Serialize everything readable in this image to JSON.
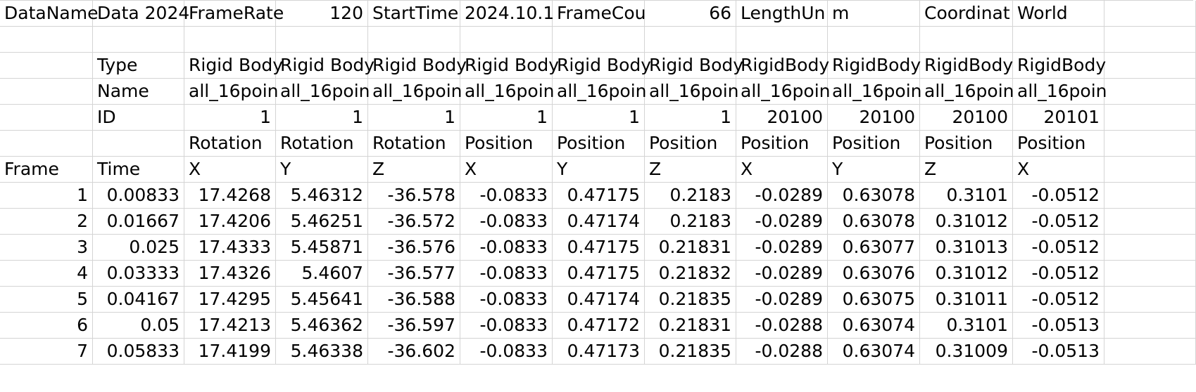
{
  "spreadsheet": {
    "rows": [
      {
        "cells": [
          {
            "v": "DataName",
            "t": "txt"
          },
          {
            "v": "Data 2024",
            "t": "txt"
          },
          {
            "v": "FrameRate",
            "t": "txt"
          },
          {
            "v": "120",
            "t": "num"
          },
          {
            "v": "StartTime",
            "t": "txt"
          },
          {
            "v": "2024.10.1",
            "t": "txt"
          },
          {
            "v": "FrameCou",
            "t": "txt"
          },
          {
            "v": "66",
            "t": "num"
          },
          {
            "v": "LengthUn",
            "t": "txt"
          },
          {
            "v": "m",
            "t": "txt"
          },
          {
            "v": "Coordinat",
            "t": "txt"
          },
          {
            "v": "World",
            "t": "txt"
          },
          {
            "v": "",
            "t": "txt"
          }
        ]
      },
      {
        "cells": [
          {
            "v": "",
            "t": "txt"
          },
          {
            "v": "",
            "t": "txt"
          },
          {
            "v": "",
            "t": "txt"
          },
          {
            "v": "",
            "t": "txt"
          },
          {
            "v": "",
            "t": "txt"
          },
          {
            "v": "",
            "t": "txt"
          },
          {
            "v": "",
            "t": "txt"
          },
          {
            "v": "",
            "t": "txt"
          },
          {
            "v": "",
            "t": "txt"
          },
          {
            "v": "",
            "t": "txt"
          },
          {
            "v": "",
            "t": "txt"
          },
          {
            "v": "",
            "t": "txt"
          },
          {
            "v": "",
            "t": "txt"
          }
        ]
      },
      {
        "cells": [
          {
            "v": "",
            "t": "txt"
          },
          {
            "v": "Type",
            "t": "txt"
          },
          {
            "v": "Rigid Body",
            "t": "txt"
          },
          {
            "v": "Rigid Body",
            "t": "txt"
          },
          {
            "v": "Rigid Body",
            "t": "txt"
          },
          {
            "v": "Rigid Body",
            "t": "txt"
          },
          {
            "v": "Rigid Body",
            "t": "txt"
          },
          {
            "v": "Rigid Body",
            "t": "txt"
          },
          {
            "v": "RigidBody",
            "t": "txt"
          },
          {
            "v": "RigidBody",
            "t": "txt"
          },
          {
            "v": "RigidBody",
            "t": "txt"
          },
          {
            "v": "RigidBody",
            "t": "txt"
          },
          {
            "v": "",
            "t": "txt"
          }
        ]
      },
      {
        "cells": [
          {
            "v": "",
            "t": "txt"
          },
          {
            "v": "Name",
            "t": "txt"
          },
          {
            "v": "all_16poin",
            "t": "txt"
          },
          {
            "v": "all_16poin",
            "t": "txt"
          },
          {
            "v": "all_16poin",
            "t": "txt"
          },
          {
            "v": "all_16poin",
            "t": "txt"
          },
          {
            "v": "all_16poin",
            "t": "txt"
          },
          {
            "v": "all_16poin",
            "t": "txt"
          },
          {
            "v": "all_16poin",
            "t": "txt"
          },
          {
            "v": "all_16poin",
            "t": "txt"
          },
          {
            "v": "all_16poin",
            "t": "txt"
          },
          {
            "v": "all_16poin",
            "t": "txt"
          },
          {
            "v": "",
            "t": "txt"
          }
        ]
      },
      {
        "cells": [
          {
            "v": "",
            "t": "txt"
          },
          {
            "v": "ID",
            "t": "txt"
          },
          {
            "v": "1",
            "t": "num"
          },
          {
            "v": "1",
            "t": "num"
          },
          {
            "v": "1",
            "t": "num"
          },
          {
            "v": "1",
            "t": "num"
          },
          {
            "v": "1",
            "t": "num"
          },
          {
            "v": "1",
            "t": "num"
          },
          {
            "v": "20100",
            "t": "num"
          },
          {
            "v": "20100",
            "t": "num"
          },
          {
            "v": "20100",
            "t": "num"
          },
          {
            "v": "20101",
            "t": "num"
          },
          {
            "v": "",
            "t": "txt"
          }
        ]
      },
      {
        "cells": [
          {
            "v": "",
            "t": "txt"
          },
          {
            "v": "",
            "t": "txt"
          },
          {
            "v": "Rotation",
            "t": "txt"
          },
          {
            "v": "Rotation",
            "t": "txt"
          },
          {
            "v": "Rotation",
            "t": "txt"
          },
          {
            "v": "Position",
            "t": "txt"
          },
          {
            "v": "Position",
            "t": "txt"
          },
          {
            "v": "Position",
            "t": "txt"
          },
          {
            "v": "Position",
            "t": "txt"
          },
          {
            "v": "Position",
            "t": "txt"
          },
          {
            "v": "Position",
            "t": "txt"
          },
          {
            "v": "Position",
            "t": "txt"
          },
          {
            "v": "",
            "t": "txt"
          }
        ]
      },
      {
        "cells": [
          {
            "v": "Frame",
            "t": "txt"
          },
          {
            "v": "Time",
            "t": "txt"
          },
          {
            "v": "X",
            "t": "txt"
          },
          {
            "v": "Y",
            "t": "txt"
          },
          {
            "v": "Z",
            "t": "txt"
          },
          {
            "v": "X",
            "t": "txt"
          },
          {
            "v": "Y",
            "t": "txt"
          },
          {
            "v": "Z",
            "t": "txt"
          },
          {
            "v": "X",
            "t": "txt"
          },
          {
            "v": "Y",
            "t": "txt"
          },
          {
            "v": "Z",
            "t": "txt"
          },
          {
            "v": "X",
            "t": "txt"
          },
          {
            "v": "",
            "t": "txt"
          }
        ]
      },
      {
        "cells": [
          {
            "v": "1",
            "t": "num"
          },
          {
            "v": "0.00833",
            "t": "num"
          },
          {
            "v": "17.4268",
            "t": "num"
          },
          {
            "v": "5.46312",
            "t": "num"
          },
          {
            "v": "-36.578",
            "t": "num"
          },
          {
            "v": "-0.0833",
            "t": "num"
          },
          {
            "v": "0.47175",
            "t": "num"
          },
          {
            "v": "0.2183",
            "t": "num"
          },
          {
            "v": "-0.0289",
            "t": "num"
          },
          {
            "v": "0.63078",
            "t": "num"
          },
          {
            "v": "0.3101",
            "t": "num"
          },
          {
            "v": "-0.0512",
            "t": "num"
          },
          {
            "v": "",
            "t": "txt"
          }
        ]
      },
      {
        "cells": [
          {
            "v": "2",
            "t": "num"
          },
          {
            "v": "0.01667",
            "t": "num"
          },
          {
            "v": "17.4206",
            "t": "num"
          },
          {
            "v": "5.46251",
            "t": "num"
          },
          {
            "v": "-36.572",
            "t": "num"
          },
          {
            "v": "-0.0833",
            "t": "num"
          },
          {
            "v": "0.47174",
            "t": "num"
          },
          {
            "v": "0.2183",
            "t": "num"
          },
          {
            "v": "-0.0289",
            "t": "num"
          },
          {
            "v": "0.63078",
            "t": "num"
          },
          {
            "v": "0.31012",
            "t": "num"
          },
          {
            "v": "-0.0512",
            "t": "num"
          },
          {
            "v": "",
            "t": "txt"
          }
        ]
      },
      {
        "cells": [
          {
            "v": "3",
            "t": "num"
          },
          {
            "v": "0.025",
            "t": "num"
          },
          {
            "v": "17.4333",
            "t": "num"
          },
          {
            "v": "5.45871",
            "t": "num"
          },
          {
            "v": "-36.576",
            "t": "num"
          },
          {
            "v": "-0.0833",
            "t": "num"
          },
          {
            "v": "0.47175",
            "t": "num"
          },
          {
            "v": "0.21831",
            "t": "num"
          },
          {
            "v": "-0.0289",
            "t": "num"
          },
          {
            "v": "0.63077",
            "t": "num"
          },
          {
            "v": "0.31013",
            "t": "num"
          },
          {
            "v": "-0.0512",
            "t": "num"
          },
          {
            "v": "",
            "t": "txt"
          }
        ]
      },
      {
        "cells": [
          {
            "v": "4",
            "t": "num"
          },
          {
            "v": "0.03333",
            "t": "num"
          },
          {
            "v": "17.4326",
            "t": "num"
          },
          {
            "v": "5.4607",
            "t": "num"
          },
          {
            "v": "-36.577",
            "t": "num"
          },
          {
            "v": "-0.0833",
            "t": "num"
          },
          {
            "v": "0.47175",
            "t": "num"
          },
          {
            "v": "0.21832",
            "t": "num"
          },
          {
            "v": "-0.0289",
            "t": "num"
          },
          {
            "v": "0.63076",
            "t": "num"
          },
          {
            "v": "0.31012",
            "t": "num"
          },
          {
            "v": "-0.0512",
            "t": "num"
          },
          {
            "v": "",
            "t": "txt"
          }
        ]
      },
      {
        "cells": [
          {
            "v": "5",
            "t": "num"
          },
          {
            "v": "0.04167",
            "t": "num"
          },
          {
            "v": "17.4295",
            "t": "num"
          },
          {
            "v": "5.45641",
            "t": "num"
          },
          {
            "v": "-36.588",
            "t": "num"
          },
          {
            "v": "-0.0833",
            "t": "num"
          },
          {
            "v": "0.47174",
            "t": "num"
          },
          {
            "v": "0.21835",
            "t": "num"
          },
          {
            "v": "-0.0289",
            "t": "num"
          },
          {
            "v": "0.63075",
            "t": "num"
          },
          {
            "v": "0.31011",
            "t": "num"
          },
          {
            "v": "-0.0512",
            "t": "num"
          },
          {
            "v": "",
            "t": "txt"
          }
        ]
      },
      {
        "cells": [
          {
            "v": "6",
            "t": "num"
          },
          {
            "v": "0.05",
            "t": "num"
          },
          {
            "v": "17.4213",
            "t": "num"
          },
          {
            "v": "5.46362",
            "t": "num"
          },
          {
            "v": "-36.597",
            "t": "num"
          },
          {
            "v": "-0.0833",
            "t": "num"
          },
          {
            "v": "0.47172",
            "t": "num"
          },
          {
            "v": "0.21831",
            "t": "num"
          },
          {
            "v": "-0.0288",
            "t": "num"
          },
          {
            "v": "0.63074",
            "t": "num"
          },
          {
            "v": "0.3101",
            "t": "num"
          },
          {
            "v": "-0.0513",
            "t": "num"
          },
          {
            "v": "",
            "t": "txt"
          }
        ]
      },
      {
        "cells": [
          {
            "v": "7",
            "t": "num"
          },
          {
            "v": "0.05833",
            "t": "num"
          },
          {
            "v": "17.4199",
            "t": "num"
          },
          {
            "v": "5.46338",
            "t": "num"
          },
          {
            "v": "-36.602",
            "t": "num"
          },
          {
            "v": "-0.0833",
            "t": "num"
          },
          {
            "v": "0.47173",
            "t": "num"
          },
          {
            "v": "0.21835",
            "t": "num"
          },
          {
            "v": "-0.0288",
            "t": "num"
          },
          {
            "v": "0.63074",
            "t": "num"
          },
          {
            "v": "0.31009",
            "t": "num"
          },
          {
            "v": "-0.0513",
            "t": "num"
          },
          {
            "v": "",
            "t": "txt"
          }
        ]
      }
    ]
  }
}
